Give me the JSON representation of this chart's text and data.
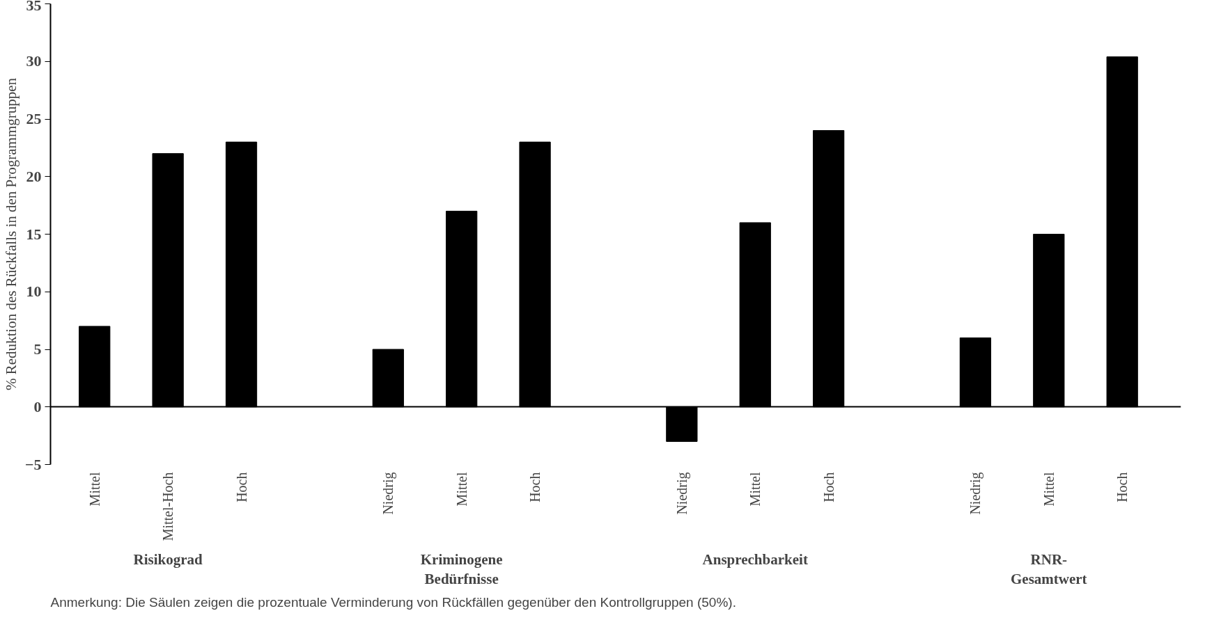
{
  "chart_data": {
    "type": "bar",
    "ylabel": "% Reduktion des Rückfalls in den Programmgruppen",
    "categories": [
      "Mittel",
      "Mittel-Hoch",
      "Hoch",
      "Niedrig",
      "Mittel",
      "Hoch",
      "Niedrig",
      "Mittel",
      "Hoch",
      "Niedrig",
      "Mittel",
      "Hoch"
    ],
    "values": [
      7,
      22,
      23,
      5,
      17,
      23,
      -3,
      16,
      24,
      6,
      15,
      30.4
    ],
    "color": "#000000",
    "ylim": [
      -5,
      35
    ],
    "yticks": [
      -5,
      0,
      5,
      10,
      15,
      20,
      25,
      30,
      35
    ],
    "annotations": [
      "Risikograd",
      "Kriminogene\nBedürfnisse",
      "Ansprechbarkeit",
      "RNR-\nGesamtwert",
      "Anmerkung: Die Säulen zeigen die prozentuale Verminderung von Rückfällen gegenüber den Kontrollgruppen (50%)."
    ]
  }
}
